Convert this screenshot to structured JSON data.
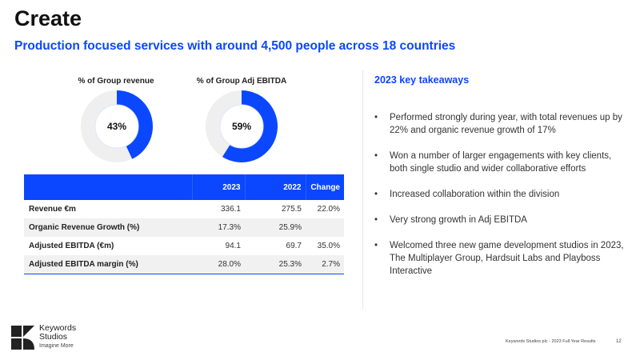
{
  "title": "Create",
  "subtitle": "Production focused services with around 4,500 people across 18 countries",
  "chart_data": [
    {
      "type": "pie",
      "title": "% of Group revenue",
      "values": [
        43,
        57
      ],
      "center_label": "43%",
      "colors": [
        "#0a47ff",
        "#efefef"
      ]
    },
    {
      "type": "pie",
      "title": "% of Group Adj EBITDA",
      "values": [
        59,
        41
      ],
      "center_label": "59%",
      "colors": [
        "#0a47ff",
        "#efefef"
      ]
    }
  ],
  "table": {
    "headers": [
      "",
      "2023",
      "2022",
      "Change"
    ],
    "rows": [
      [
        "Revenue €m",
        "336.1",
        "275.5",
        "22.0%"
      ],
      [
        "Organic Revenue Growth (%)",
        "17.3%",
        "25.9%",
        ""
      ],
      [
        "Adjusted EBITDA (€m)",
        "94.1",
        "69.7",
        "35.0%"
      ],
      [
        "Adjusted EBITDA margin (%)",
        "28.0%",
        "25.3%",
        "2.7%"
      ]
    ]
  },
  "takeaways": {
    "heading": "2023 key takeaways",
    "items": [
      "Performed strongly during year, with total revenues up by 22% and organic revenue growth of 17%",
      "Won a number of larger engagements with key clients, both single studio and wider collaborative efforts",
      "Increased collaboration within the division",
      "Very strong growth in Adj EBITDA",
      "Welcomed three new game development studios in 2023, The Multiplayer Group, Hardsuit Labs and Playboss Interactive"
    ]
  },
  "logo": {
    "line1": "Keywords",
    "line2": "Studios",
    "tagline": "Imagine More"
  },
  "footer": {
    "text": "Keywords Studios plc - 2023 Full Year Results",
    "page": "12"
  },
  "colors": {
    "accent": "#0a47ff"
  }
}
